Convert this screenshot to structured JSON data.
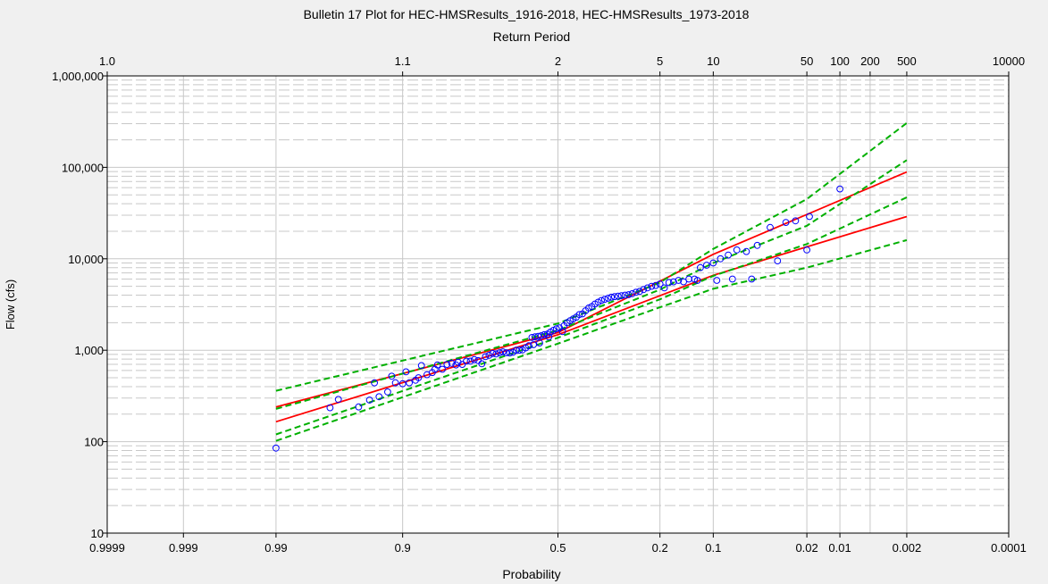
{
  "chart_data": {
    "type": "scatter",
    "title": "Bulletin 17 Plot for HEC-HMSResults_1916-2018, HEC-HMSResults_1973-2018",
    "top_axis_label": "Return Period",
    "xlabel": "Probability",
    "ylabel": "Flow (cfs)",
    "y_scale": "log",
    "ylim": [
      10,
      1000000
    ],
    "x_scale": "normal-probability",
    "xlim": [
      0.9999,
      0.0001
    ],
    "x_ticks": [
      {
        "p": 0.9999,
        "label": "0.9999"
      },
      {
        "p": 0.999,
        "label": "0.999"
      },
      {
        "p": 0.99,
        "label": "0.99"
      },
      {
        "p": 0.9,
        "label": "0.9"
      },
      {
        "p": 0.5,
        "label": "0.5"
      },
      {
        "p": 0.2,
        "label": "0.2"
      },
      {
        "p": 0.1,
        "label": "0.1"
      },
      {
        "p": 0.02,
        "label": "0.02"
      },
      {
        "p": 0.01,
        "label": "0.01"
      },
      {
        "p": 0.002,
        "label": "0.002"
      },
      {
        "p": 0.0001,
        "label": "0.0001"
      }
    ],
    "x_minor_grid": [
      0.005
    ],
    "top_ticks": [
      {
        "p": 0.9999,
        "label": "1.0"
      },
      {
        "p": 0.9,
        "label": "1.1"
      },
      {
        "p": 0.5,
        "label": "2"
      },
      {
        "p": 0.2,
        "label": "5"
      },
      {
        "p": 0.1,
        "label": "10"
      },
      {
        "p": 0.02,
        "label": "50"
      },
      {
        "p": 0.01,
        "label": "100"
      },
      {
        "p": 0.005,
        "label": "200"
      },
      {
        "p": 0.002,
        "label": "500"
      },
      {
        "p": 0.0001,
        "label": "10000"
      }
    ],
    "y_ticks": [
      {
        "v": 10,
        "label": "10"
      },
      {
        "v": 100,
        "label": "100"
      },
      {
        "v": 1000,
        "label": "1,000"
      },
      {
        "v": 10000,
        "label": "10,000"
      },
      {
        "v": 100000,
        "label": "100,000"
      },
      {
        "v": 1000000,
        "label": "1,000,000"
      }
    ],
    "grid": true,
    "colors": {
      "background": "#ffffff",
      "window": "#f0f0f0",
      "grid": "#c8c8c8",
      "computed_curve": "#ff0000",
      "confidence_limits": "#00b000",
      "observed_points": "#0000ff"
    },
    "lines": [
      {
        "style": "solid",
        "color": "#ff0000",
        "points": [
          [
            0.99,
            240
          ],
          [
            0.5,
            1560
          ],
          [
            0.1,
            11200
          ],
          [
            0.002,
            89000
          ]
        ]
      },
      {
        "style": "solid",
        "color": "#ff0000",
        "points": [
          [
            0.99,
            165
          ],
          [
            0.5,
            1480
          ],
          [
            0.1,
            6600
          ],
          [
            0.002,
            29000
          ]
        ]
      },
      {
        "style": "dashed",
        "color": "#00b000",
        "points": [
          [
            0.99,
            360
          ],
          [
            0.5,
            1960
          ],
          [
            0.2,
            5500
          ],
          [
            0.1,
            12800
          ],
          [
            0.02,
            45000
          ],
          [
            0.002,
            305000
          ]
        ]
      },
      {
        "style": "dashed",
        "color": "#00b000",
        "points": [
          [
            0.99,
            228
          ],
          [
            0.5,
            1650
          ],
          [
            0.2,
            4600
          ],
          [
            0.1,
            9000
          ],
          [
            0.02,
            23000
          ],
          [
            0.002,
            120000
          ]
        ]
      },
      {
        "style": "dashed",
        "color": "#00b000",
        "points": [
          [
            0.99,
            120
          ],
          [
            0.5,
            1370
          ],
          [
            0.2,
            3600
          ],
          [
            0.1,
            6500
          ],
          [
            0.02,
            14500
          ],
          [
            0.002,
            47000
          ]
        ]
      },
      {
        "style": "dashed",
        "color": "#00b000",
        "points": [
          [
            0.99,
            102
          ],
          [
            0.5,
            1180
          ],
          [
            0.2,
            2950
          ],
          [
            0.1,
            4700
          ],
          [
            0.02,
            8000
          ],
          [
            0.002,
            16000
          ]
        ]
      }
    ],
    "points": [
      [
        0.99,
        85
      ],
      [
        0.97,
        235
      ],
      [
        0.965,
        290
      ],
      [
        0.95,
        240
      ],
      [
        0.94,
        285
      ],
      [
        0.935,
        440
      ],
      [
        0.93,
        310
      ],
      [
        0.92,
        350
      ],
      [
        0.915,
        520
      ],
      [
        0.91,
        440
      ],
      [
        0.9,
        430
      ],
      [
        0.895,
        580
      ],
      [
        0.89,
        440
      ],
      [
        0.88,
        470
      ],
      [
        0.875,
        500
      ],
      [
        0.87,
        680
      ],
      [
        0.86,
        540
      ],
      [
        0.85,
        570
      ],
      [
        0.845,
        620
      ],
      [
        0.84,
        690
      ],
      [
        0.83,
        620
      ],
      [
        0.82,
        700
      ],
      [
        0.81,
        720
      ],
      [
        0.8,
        690
      ],
      [
        0.795,
        740
      ],
      [
        0.785,
        700
      ],
      [
        0.775,
        760
      ],
      [
        0.765,
        760
      ],
      [
        0.755,
        790
      ],
      [
        0.745,
        770
      ],
      [
        0.735,
        710
      ],
      [
        0.725,
        850
      ],
      [
        0.715,
        880
      ],
      [
        0.705,
        920
      ],
      [
        0.695,
        910
      ],
      [
        0.685,
        940
      ],
      [
        0.675,
        960
      ],
      [
        0.665,
        940
      ],
      [
        0.655,
        930
      ],
      [
        0.645,
        950
      ],
      [
        0.635,
        1000
      ],
      [
        0.625,
        1000
      ],
      [
        0.615,
        1010
      ],
      [
        0.605,
        1060
      ],
      [
        0.595,
        1120
      ],
      [
        0.585,
        1380
      ],
      [
        0.58,
        1150
      ],
      [
        0.575,
        1400
      ],
      [
        0.565,
        1420
      ],
      [
        0.56,
        1200
      ],
      [
        0.555,
        1440
      ],
      [
        0.545,
        1480
      ],
      [
        0.535,
        1500
      ],
      [
        0.53,
        1400
      ],
      [
        0.525,
        1580
      ],
      [
        0.515,
        1650
      ],
      [
        0.505,
        1720
      ],
      [
        0.495,
        1760
      ],
      [
        0.485,
        1600
      ],
      [
        0.48,
        1850
      ],
      [
        0.47,
        2000
      ],
      [
        0.46,
        2100
      ],
      [
        0.45,
        2200
      ],
      [
        0.44,
        2300
      ],
      [
        0.43,
        2450
      ],
      [
        0.42,
        2500
      ],
      [
        0.41,
        2700
      ],
      [
        0.4,
        2900
      ],
      [
        0.39,
        3000
      ],
      [
        0.38,
        3200
      ],
      [
        0.37,
        3350
      ],
      [
        0.36,
        3500
      ],
      [
        0.35,
        3600
      ],
      [
        0.34,
        3700
      ],
      [
        0.33,
        3800
      ],
      [
        0.32,
        3850
      ],
      [
        0.31,
        3900
      ],
      [
        0.3,
        3950
      ],
      [
        0.29,
        4000
      ],
      [
        0.28,
        4050
      ],
      [
        0.27,
        4150
      ],
      [
        0.26,
        4300
      ],
      [
        0.25,
        4400
      ],
      [
        0.24,
        4600
      ],
      [
        0.23,
        4800
      ],
      [
        0.22,
        5000
      ],
      [
        0.21,
        5100
      ],
      [
        0.2,
        5300
      ],
      [
        0.19,
        4800
      ],
      [
        0.18,
        5500
      ],
      [
        0.17,
        5600
      ],
      [
        0.16,
        5800
      ],
      [
        0.15,
        5600
      ],
      [
        0.14,
        6000
      ],
      [
        0.13,
        6000
      ],
      [
        0.125,
        5800
      ],
      [
        0.12,
        8000
      ],
      [
        0.11,
        8500
      ],
      [
        0.1,
        9000
      ],
      [
        0.095,
        5800
      ],
      [
        0.09,
        10000
      ],
      [
        0.08,
        11000
      ],
      [
        0.075,
        6000
      ],
      [
        0.07,
        12500
      ],
      [
        0.06,
        12000
      ],
      [
        0.055,
        6000
      ],
      [
        0.05,
        14000
      ],
      [
        0.04,
        22000
      ],
      [
        0.035,
        9500
      ],
      [
        0.03,
        25000
      ],
      [
        0.025,
        26000
      ],
      [
        0.02,
        12500
      ],
      [
        0.019,
        29000
      ],
      [
        0.01,
        58000
      ]
    ]
  }
}
